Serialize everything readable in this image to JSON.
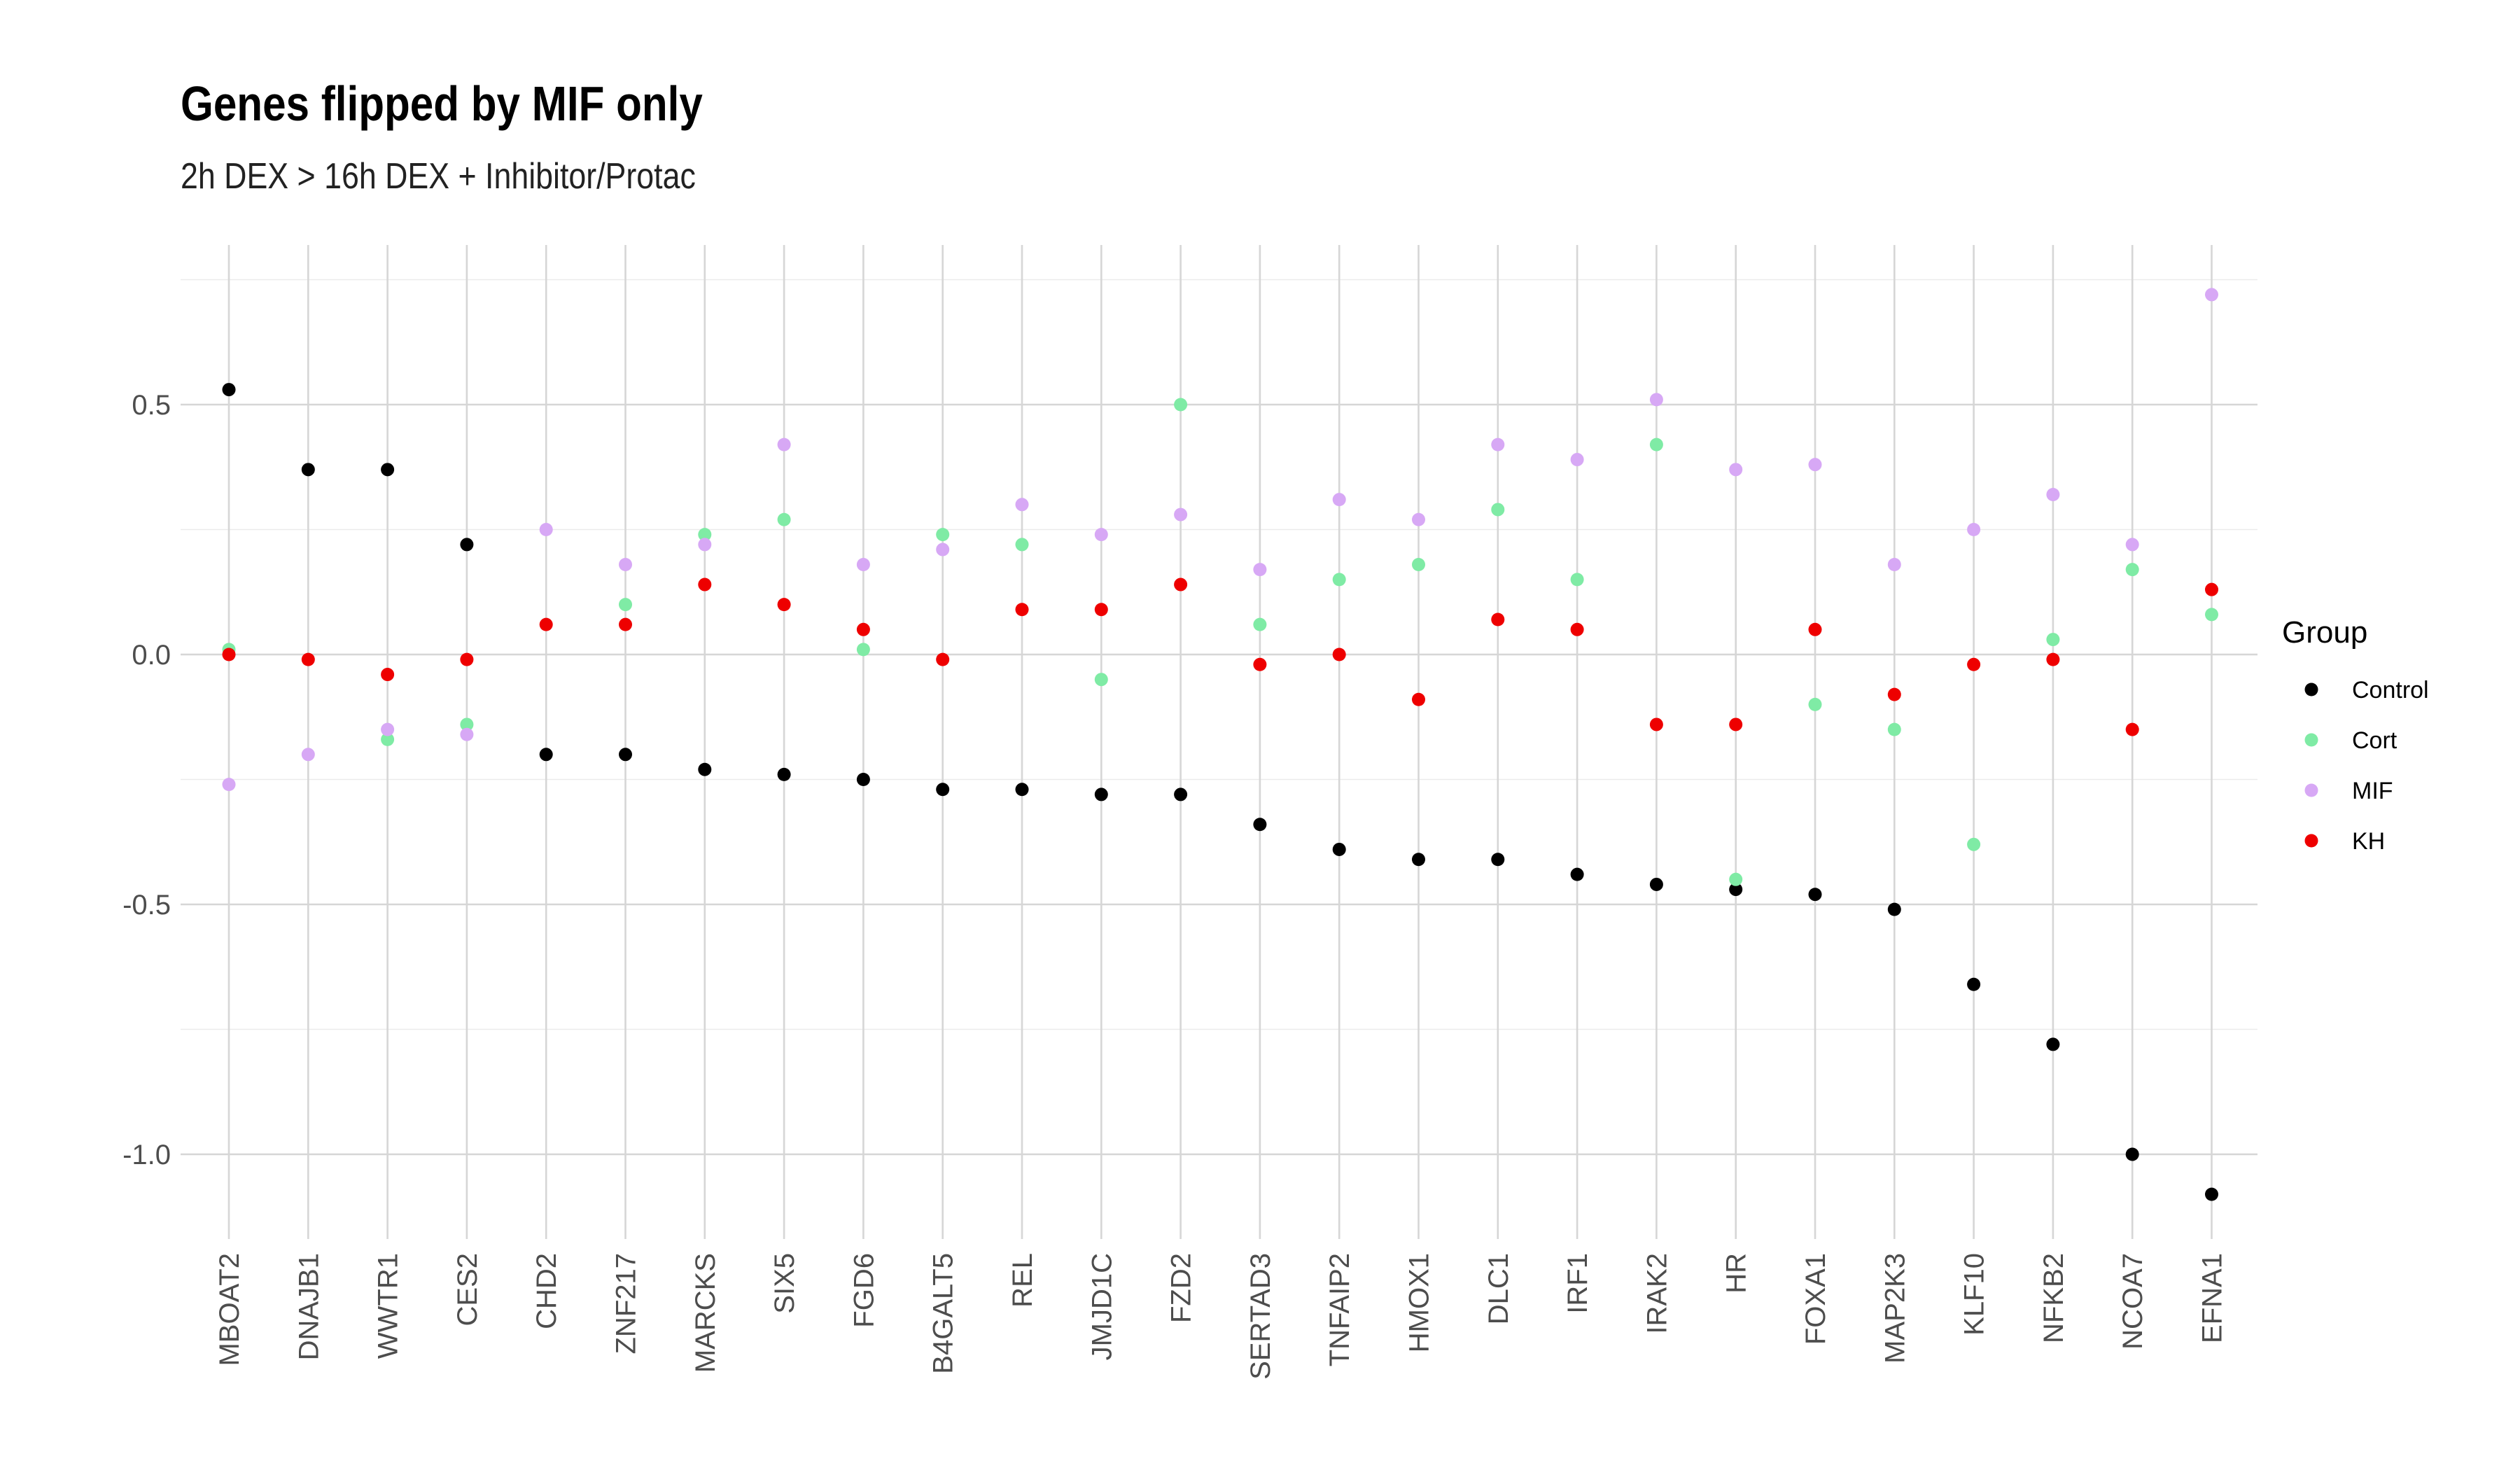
{
  "chart_data": {
    "type": "scatter",
    "title": "Genes flipped by MIF only",
    "subtitle": "2h DEX > 16h DEX + Inhibitor/Protac",
    "xlabel": "",
    "ylabel": "",
    "ylim": [
      -1.15,
      0.76
    ],
    "y_ticks": [
      0.5,
      0.0,
      -0.5,
      -1.0
    ],
    "y_tick_labels": [
      "0.5",
      "0.0",
      "-0.5",
      "-1.0"
    ],
    "grid": true,
    "legend": {
      "title": "Group",
      "position": "right"
    },
    "categories": [
      "MBOAT2",
      "DNAJB1",
      "WWTR1",
      "CES2",
      "CHD2",
      "ZNF217",
      "MARCKS",
      "SIX5",
      "FGD6",
      "B4GALT5",
      "REL",
      "JMJD1C",
      "FZD2",
      "SERTAD3",
      "TNFAIP2",
      "HMOX1",
      "DLC1",
      "IRF1",
      "IRAK2",
      "HR",
      "FOXA1",
      "MAP2K3",
      "KLF10",
      "NFKB2",
      "NCOA7",
      "EFNA1"
    ],
    "series": [
      {
        "name": "Control",
        "color": "#000000",
        "values": [
          0.53,
          0.37,
          0.37,
          0.22,
          -0.2,
          -0.2,
          -0.23,
          -0.24,
          -0.25,
          -0.27,
          -0.27,
          -0.28,
          -0.28,
          -0.34,
          -0.39,
          -0.41,
          -0.41,
          -0.44,
          -0.46,
          -0.47,
          -0.48,
          -0.51,
          -0.66,
          -0.78,
          -1.0,
          -1.08
        ]
      },
      {
        "name": "Cort",
        "color": "#7FEBA5",
        "values": [
          0.01,
          null,
          -0.17,
          -0.14,
          null,
          0.1,
          0.24,
          0.27,
          0.01,
          0.24,
          0.22,
          -0.05,
          0.5,
          0.06,
          0.15,
          0.18,
          0.29,
          0.15,
          0.42,
          -0.45,
          -0.1,
          -0.15,
          -0.38,
          0.03,
          0.17,
          0.08
        ]
      },
      {
        "name": "MIF",
        "color": "#D7A8F5",
        "values": [
          -0.26,
          -0.2,
          -0.15,
          -0.16,
          0.25,
          0.18,
          0.22,
          0.42,
          0.18,
          0.21,
          0.3,
          0.24,
          0.28,
          0.17,
          0.31,
          0.27,
          0.42,
          0.39,
          0.51,
          0.37,
          0.38,
          0.18,
          0.25,
          0.32,
          0.22,
          0.72
        ]
      },
      {
        "name": "KH",
        "color": "#EE0000",
        "values": [
          0.0,
          -0.01,
          -0.04,
          -0.01,
          0.06,
          0.06,
          0.14,
          0.1,
          0.05,
          -0.01,
          0.09,
          0.09,
          0.14,
          -0.02,
          0.0,
          -0.09,
          0.07,
          0.05,
          -0.14,
          -0.14,
          0.05,
          -0.08,
          -0.02,
          -0.01,
          -0.15,
          0.13
        ]
      }
    ]
  }
}
